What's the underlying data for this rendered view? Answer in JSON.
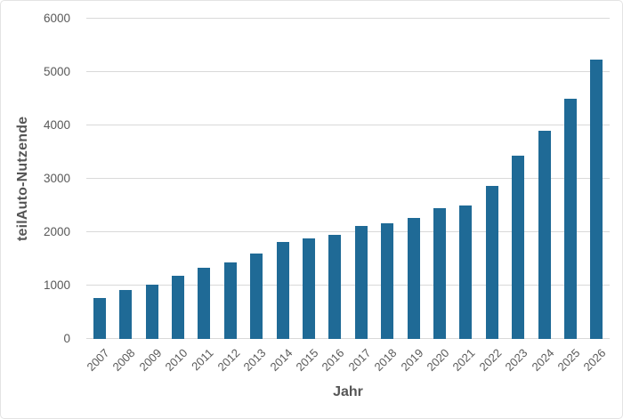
{
  "chart_data": {
    "type": "bar",
    "title": "",
    "xlabel": "Jahr",
    "ylabel": "teilAuto-Nutzende",
    "categories": [
      "2007",
      "2008",
      "2009",
      "2010",
      "2011",
      "2012",
      "2013",
      "2014",
      "2015",
      "2016",
      "2017",
      "2018",
      "2019",
      "2020",
      "2021",
      "2022",
      "2023",
      "2024",
      "2025",
      "2026"
    ],
    "values": [
      760,
      910,
      1010,
      1180,
      1330,
      1430,
      1600,
      1810,
      1890,
      1950,
      2110,
      2170,
      2270,
      2450,
      2500,
      2870,
      3430,
      3900,
      4500,
      5240
    ],
    "ylim": [
      0,
      6000
    ],
    "yticks": [
      0,
      1000,
      2000,
      3000,
      4000,
      5000,
      6000
    ],
    "grid": "horizontal",
    "legend": "none",
    "x_tick_rotation_deg": 45
  },
  "colors": {
    "bar": "#1f6a96",
    "gridline": "#d9d9d9",
    "tick_text": "#595959",
    "axis_title_text": "#555555",
    "card_border": "#e3e3e3",
    "background": "#ffffff"
  }
}
